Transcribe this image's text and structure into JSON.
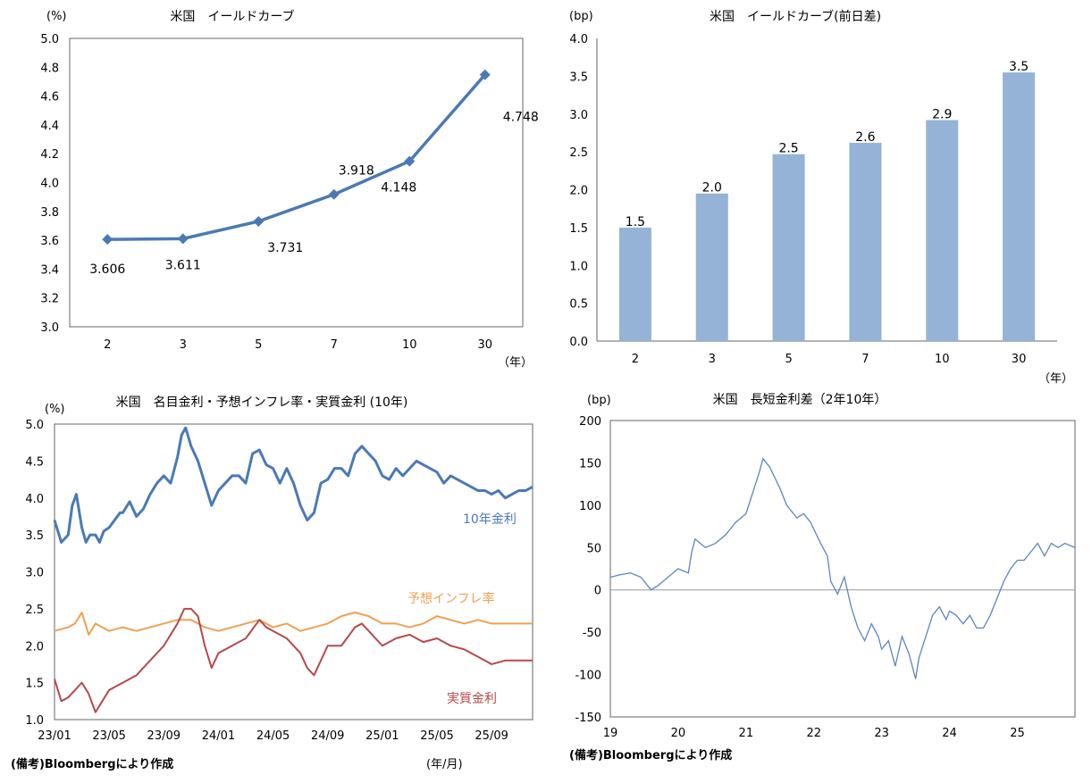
{
  "colors": {
    "line_blue": "#4a7ab5",
    "bar_blue": "#95b3d7",
    "orange": "#f0a050",
    "red": "#b84848",
    "spread_line": "#5b86be",
    "grid": "#999999"
  },
  "footnote": "(備考)Bloombergにより作成",
  "chart_data": [
    {
      "id": "yield_curve",
      "type": "line",
      "title": "米国　イールドカーブ",
      "unit_label": "(%)",
      "x_unit_label": "（年）",
      "categories": [
        "2",
        "3",
        "5",
        "7",
        "10",
        "30"
      ],
      "values": [
        3.606,
        3.611,
        3.731,
        3.918,
        4.148,
        4.748
      ],
      "data_labels": [
        "3.606",
        "3.611",
        "3.731",
        "3.918",
        "4.148",
        "4.748"
      ],
      "ylim": [
        3.0,
        5.0
      ],
      "yticks": [
        "3.0",
        "3.2",
        "3.4",
        "3.6",
        "3.8",
        "4.0",
        "4.2",
        "4.4",
        "4.6",
        "4.8",
        "5.0"
      ]
    },
    {
      "id": "yield_change",
      "type": "bar",
      "title": "米国　イールドカーブ(前日差)",
      "unit_label": "(bp)",
      "x_unit_label": "（年）",
      "categories": [
        "2",
        "3",
        "5",
        "7",
        "10",
        "30"
      ],
      "values": [
        1.5,
        1.95,
        2.47,
        2.62,
        2.92,
        3.55
      ],
      "data_labels": [
        "1.5",
        "2.0",
        "2.5",
        "2.6",
        "2.9",
        "3.5"
      ],
      "ylim": [
        0.0,
        4.0
      ],
      "yticks": [
        "0.0",
        "0.5",
        "1.0",
        "1.5",
        "2.0",
        "2.5",
        "3.0",
        "3.5",
        "4.0"
      ]
    },
    {
      "id": "rates_10y",
      "type": "line",
      "title": "米国　名目金利・予想インフレ率・実質金利 (10年)",
      "unit_label": "(%)",
      "x_unit_label": "(年/月)",
      "ylim": [
        1.0,
        5.0
      ],
      "yticks": [
        "1.0",
        "1.5",
        "2.0",
        "2.5",
        "3.0",
        "3.5",
        "4.0",
        "4.5",
        "5.0"
      ],
      "xticks": [
        "23/01",
        "23/05",
        "23/09",
        "24/01",
        "24/05",
        "24/09",
        "25/01",
        "25/05",
        "25/09"
      ],
      "x_range_months": [
        0,
        35
      ],
      "series": [
        {
          "name": "10年金利",
          "color": "#4a7ab5",
          "x": [
            0,
            0.5,
            1,
            1.3,
            1.6,
            2,
            2.3,
            2.6,
            3,
            3.3,
            3.6,
            4,
            4.4,
            4.8,
            5,
            5.5,
            6,
            6.5,
            7,
            7.5,
            8,
            8.5,
            9,
            9.3,
            9.6,
            10,
            10.5,
            11,
            11.5,
            12,
            12.5,
            13,
            13.5,
            14,
            14.5,
            15,
            15.5,
            16,
            16.5,
            17,
            17.5,
            18,
            18.5,
            19,
            19.5,
            20,
            20.5,
            21,
            21.5,
            22,
            22.5,
            23,
            23.5,
            24,
            24.5,
            25,
            25.5,
            26,
            26.5,
            27,
            27.5,
            28,
            28.5,
            29,
            29.5,
            30,
            30.5,
            31,
            31.5,
            32,
            32.5,
            33,
            33.5,
            34,
            34.5,
            35
          ],
          "y": [
            3.7,
            3.4,
            3.5,
            3.9,
            4.05,
            3.6,
            3.4,
            3.5,
            3.5,
            3.4,
            3.55,
            3.6,
            3.7,
            3.8,
            3.8,
            3.95,
            3.75,
            3.85,
            4.05,
            4.2,
            4.3,
            4.2,
            4.55,
            4.85,
            4.95,
            4.7,
            4.5,
            4.2,
            3.9,
            4.1,
            4.2,
            4.3,
            4.3,
            4.2,
            4.6,
            4.65,
            4.45,
            4.4,
            4.2,
            4.4,
            4.2,
            3.9,
            3.7,
            3.8,
            4.2,
            4.25,
            4.4,
            4.4,
            4.3,
            4.6,
            4.7,
            4.6,
            4.5,
            4.3,
            4.25,
            4.4,
            4.3,
            4.4,
            4.5,
            4.45,
            4.4,
            4.35,
            4.2,
            4.3,
            4.25,
            4.2,
            4.15,
            4.1,
            4.1,
            4.05,
            4.1,
            4.0,
            4.05,
            4.1,
            4.1,
            4.15
          ]
        },
        {
          "name": "予想インフレ率",
          "color": "#f0a050",
          "x": [
            0,
            1,
            1.5,
            2,
            2.5,
            3,
            4,
            5,
            6,
            7,
            8,
            9,
            10,
            10.5,
            11,
            12,
            13,
            14,
            15,
            16,
            17,
            18,
            19,
            20,
            21,
            22,
            23,
            24,
            25,
            26,
            27,
            28,
            29,
            30,
            31,
            32,
            33,
            34,
            35
          ],
          "y": [
            2.2,
            2.25,
            2.3,
            2.45,
            2.15,
            2.3,
            2.2,
            2.25,
            2.2,
            2.25,
            2.3,
            2.35,
            2.35,
            2.3,
            2.25,
            2.2,
            2.25,
            2.3,
            2.35,
            2.25,
            2.3,
            2.2,
            2.25,
            2.3,
            2.4,
            2.45,
            2.4,
            2.3,
            2.3,
            2.25,
            2.3,
            2.4,
            2.35,
            2.3,
            2.35,
            2.3,
            2.3,
            2.3,
            2.3
          ]
        },
        {
          "name": "実質金利",
          "color": "#b84848",
          "x": [
            0,
            0.5,
            1,
            1.5,
            2,
            2.5,
            3,
            3.5,
            4,
            5,
            6,
            7,
            8,
            9,
            9.5,
            10,
            10.5,
            11,
            11.5,
            12,
            13,
            14,
            15,
            15.5,
            16,
            17,
            18,
            18.5,
            19,
            19.5,
            20,
            21,
            22,
            22.5,
            23,
            24,
            25,
            26,
            27,
            28,
            29,
            30,
            31,
            32,
            33,
            34,
            35
          ],
          "y": [
            1.55,
            1.25,
            1.3,
            1.4,
            1.5,
            1.35,
            1.1,
            1.25,
            1.4,
            1.5,
            1.6,
            1.8,
            2.0,
            2.3,
            2.5,
            2.5,
            2.4,
            2.0,
            1.7,
            1.9,
            2.0,
            2.1,
            2.35,
            2.25,
            2.2,
            2.1,
            1.9,
            1.7,
            1.6,
            1.8,
            2.0,
            2.0,
            2.25,
            2.3,
            2.2,
            2.0,
            2.1,
            2.15,
            2.05,
            2.1,
            2.0,
            1.95,
            1.85,
            1.75,
            1.8,
            1.8,
            1.8
          ]
        }
      ]
    },
    {
      "id": "spread_2s10s",
      "type": "line",
      "title": "米国　長短金利差（2年10年）",
      "unit_label": "(bp)",
      "ylim": [
        -150,
        200
      ],
      "yticks": [
        "-150",
        "-100",
        "-50",
        "0",
        "50",
        "100",
        "150",
        "200"
      ],
      "xticks": [
        "19",
        "20",
        "21",
        "22",
        "23",
        "24",
        "25"
      ],
      "x_range_years": [
        2019.0,
        2025.85
      ],
      "series": [
        {
          "name": "2年10年",
          "color": "#5b86be",
          "x": [
            2019.0,
            2019.15,
            2019.3,
            2019.45,
            2019.6,
            2019.7,
            2019.85,
            2020.0,
            2020.15,
            2020.2,
            2020.25,
            2020.4,
            2020.55,
            2020.7,
            2020.85,
            2021.0,
            2021.1,
            2021.2,
            2021.25,
            2021.35,
            2021.5,
            2021.6,
            2021.75,
            2021.85,
            2021.95,
            2022.1,
            2022.2,
            2022.25,
            2022.35,
            2022.45,
            2022.55,
            2022.65,
            2022.75,
            2022.85,
            2022.95,
            2023.0,
            2023.1,
            2023.2,
            2023.3,
            2023.4,
            2023.5,
            2023.55,
            2023.65,
            2023.75,
            2023.85,
            2023.95,
            2024.0,
            2024.1,
            2024.2,
            2024.3,
            2024.4,
            2024.5,
            2024.6,
            2024.7,
            2024.8,
            2024.9,
            2025.0,
            2025.1,
            2025.2,
            2025.3,
            2025.4,
            2025.5,
            2025.6,
            2025.7,
            2025.85
          ],
          "y": [
            15,
            18,
            20,
            15,
            0,
            5,
            15,
            25,
            20,
            45,
            60,
            50,
            55,
            65,
            80,
            90,
            115,
            140,
            155,
            145,
            120,
            100,
            85,
            90,
            80,
            55,
            40,
            10,
            -5,
            15,
            -20,
            -45,
            -60,
            -40,
            -55,
            -70,
            -60,
            -90,
            -55,
            -75,
            -105,
            -80,
            -55,
            -30,
            -20,
            -35,
            -25,
            -30,
            -40,
            -30,
            -45,
            -45,
            -30,
            -10,
            10,
            25,
            35,
            35,
            45,
            55,
            40,
            55,
            50,
            55,
            50
          ]
        }
      ]
    }
  ]
}
